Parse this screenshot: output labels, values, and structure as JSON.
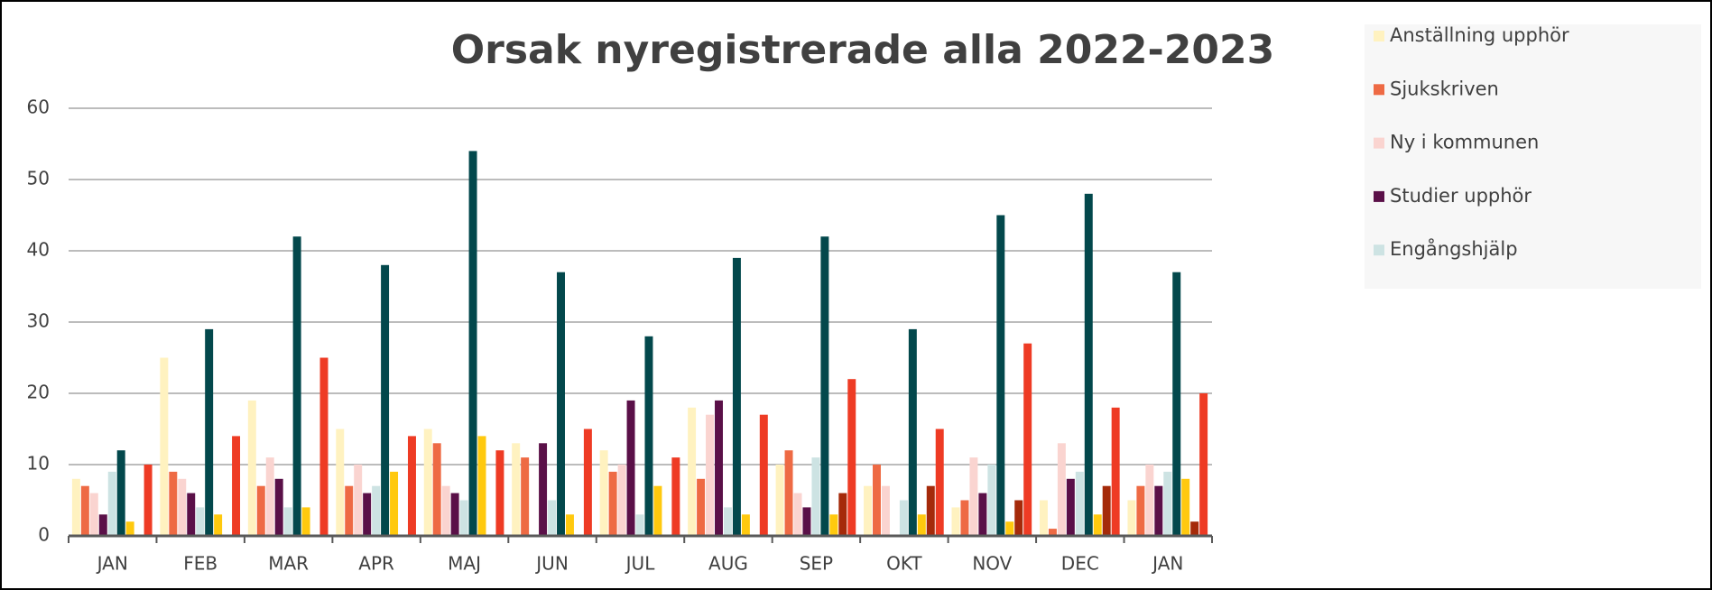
{
  "chart_data": {
    "type": "bar",
    "title": "Orsak nyregistrerade alla 2022-2023",
    "categories": [
      "JAN",
      "FEB",
      "MAR",
      "APR",
      "MAJ",
      "JUN",
      "JUL",
      "AUG",
      "SEP",
      "OKT",
      "NOV",
      "DEC",
      "JAN"
    ],
    "series": [
      {
        "name": "Anställning upphör",
        "color": "#fff2c0",
        "values": [
          8,
          25,
          19,
          15,
          15,
          13,
          12,
          18,
          10,
          7,
          4,
          5,
          5
        ]
      },
      {
        "name": "Sjukskriven",
        "color": "#ee6a44",
        "values": [
          7,
          9,
          7,
          7,
          13,
          11,
          9,
          8,
          12,
          10,
          5,
          1,
          7
        ]
      },
      {
        "name": "Ny i kommunen",
        "color": "#fad4d0",
        "values": [
          6,
          8,
          11,
          10,
          7,
          0,
          10,
          17,
          6,
          7,
          11,
          13,
          10
        ]
      },
      {
        "name": "Studier upphör",
        "color": "#5a1048",
        "values": [
          3,
          6,
          8,
          6,
          6,
          13,
          19,
          19,
          4,
          0,
          6,
          8,
          7
        ]
      },
      {
        "name": "Engångshjälp",
        "color": "#cde3e3",
        "values": [
          9,
          4,
          4,
          7,
          5,
          5,
          3,
          4,
          11,
          5,
          10,
          9,
          9
        ]
      },
      {
        "color": "#03484c",
        "values": [
          12,
          29,
          42,
          38,
          54,
          37,
          28,
          39,
          42,
          29,
          45,
          48,
          37
        ]
      },
      {
        "color": "#ffc90e",
        "values": [
          2,
          3,
          4,
          9,
          14,
          3,
          7,
          3,
          3,
          3,
          2,
          3,
          8
        ]
      },
      {
        "color": "#a52a0a",
        "values": [
          0,
          0,
          0,
          0,
          0,
          0,
          0,
          0,
          6,
          7,
          5,
          7,
          2
        ]
      },
      {
        "color": "#ee3b24",
        "values": [
          10,
          14,
          25,
          14,
          12,
          15,
          11,
          17,
          22,
          15,
          27,
          18,
          20
        ]
      }
    ],
    "ylim": [
      0,
      60
    ],
    "yticks": [
      0,
      10,
      20,
      30,
      40,
      50,
      60
    ],
    "grid": true,
    "legend": "right"
  }
}
